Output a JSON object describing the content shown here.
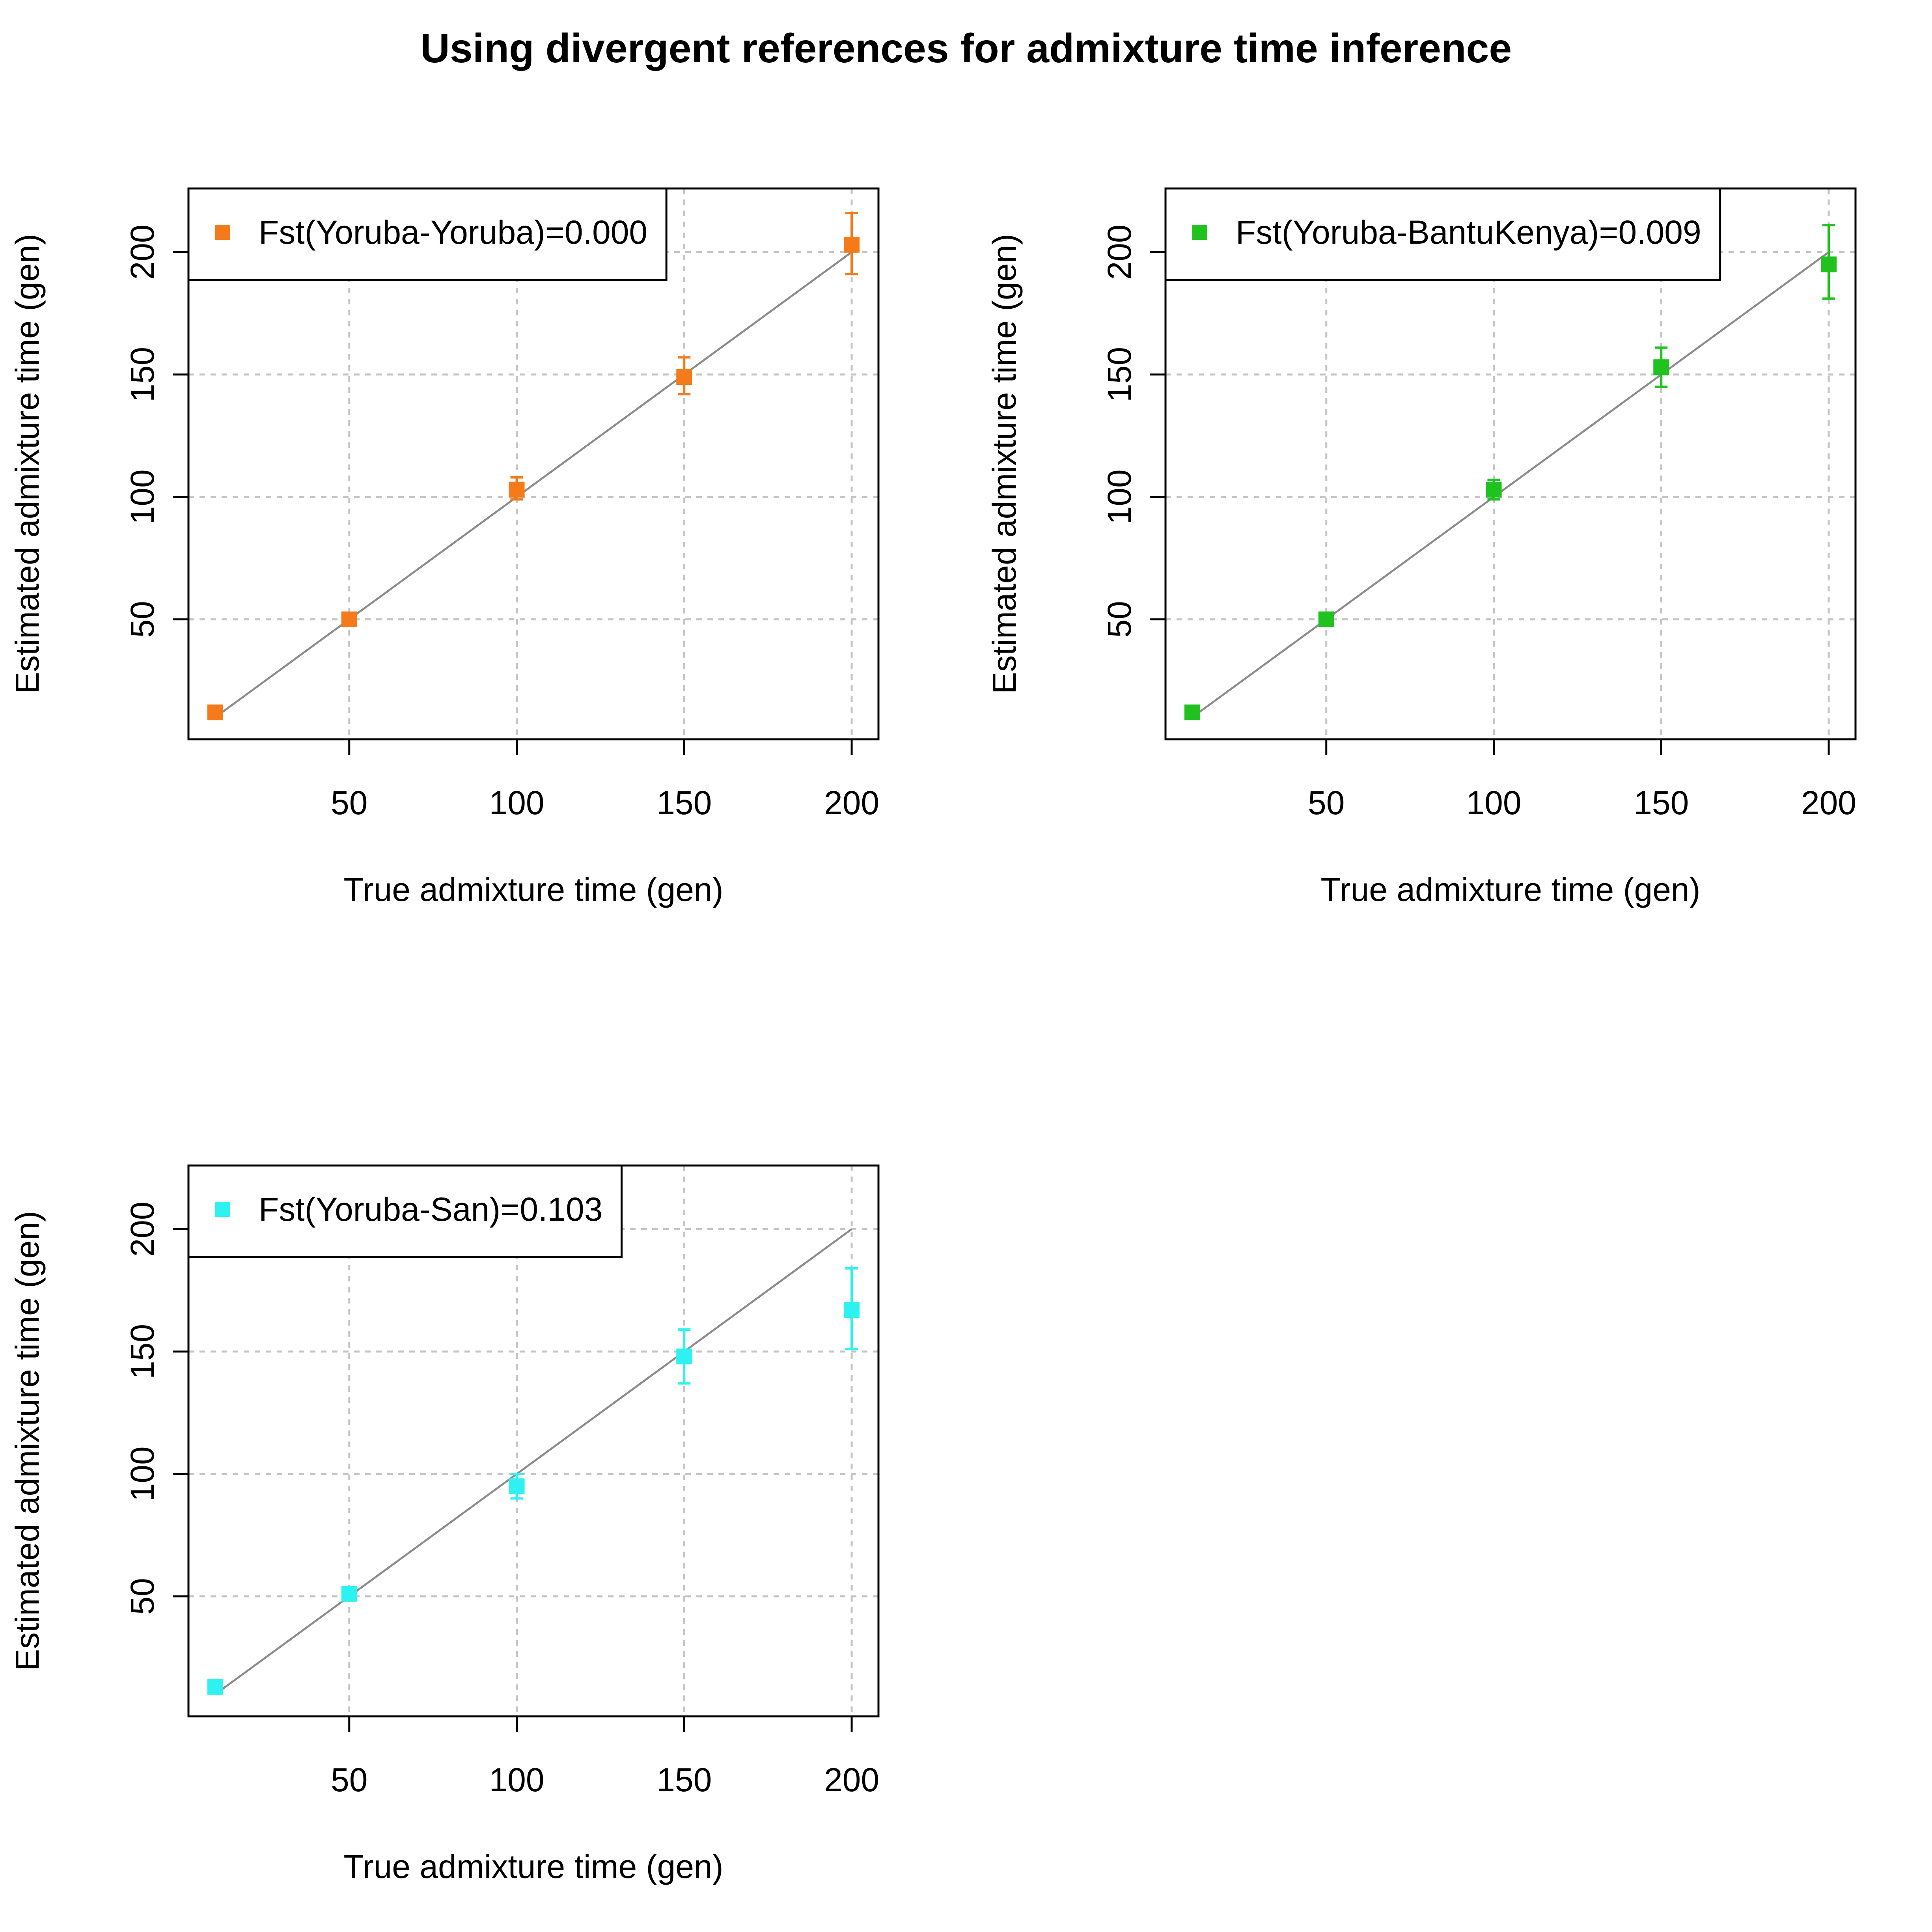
{
  "figure": {
    "title": "Using divergent references for admixture time inference"
  },
  "chart_data": [
    {
      "type": "scatter",
      "xlabel": "True admixture time (gen)",
      "ylabel": "Estimated admixture time (gen)",
      "xlim": [
        2,
        208
      ],
      "ylim": [
        1,
        226
      ],
      "xticks": [
        50,
        100,
        150,
        200
      ],
      "yticks": [
        50,
        100,
        150,
        200
      ],
      "grid": true,
      "reference_line": "y = x",
      "legend_position": "top-left",
      "series": [
        {
          "name": "Fst(Yoruba-Yoruba)=0.000",
          "color": "#F57A1A",
          "x": [
            10,
            50,
            100,
            150,
            200
          ],
          "y": [
            12,
            50,
            103,
            149,
            203
          ],
          "err_low": [
            11,
            48,
            99,
            142,
            191
          ],
          "err_high": [
            13,
            52,
            108,
            157,
            216
          ]
        }
      ]
    },
    {
      "type": "scatter",
      "xlabel": "True admixture time (gen)",
      "ylabel": "Estimated admixture time (gen)",
      "xlim": [
        2,
        208
      ],
      "ylim": [
        1,
        226
      ],
      "xticks": [
        50,
        100,
        150,
        200
      ],
      "yticks": [
        50,
        100,
        150,
        200
      ],
      "grid": true,
      "reference_line": "y = x",
      "legend_position": "top-left",
      "series": [
        {
          "name": "Fst(Yoruba-BantuKenya)=0.009",
          "color": "#1FC21F",
          "x": [
            10,
            50,
            100,
            150,
            200
          ],
          "y": [
            12,
            50,
            103,
            153,
            195
          ],
          "err_low": [
            11,
            48,
            99,
            145,
            181
          ],
          "err_high": [
            13,
            52,
            107,
            161,
            211
          ]
        }
      ]
    },
    {
      "type": "scatter",
      "xlabel": "True admixture time (gen)",
      "ylabel": "Estimated admixture time (gen)",
      "xlim": [
        2,
        208
      ],
      "ylim": [
        1,
        226
      ],
      "xticks": [
        50,
        100,
        150,
        200
      ],
      "yticks": [
        50,
        100,
        150,
        200
      ],
      "grid": true,
      "reference_line": "y = x",
      "legend_position": "top-left",
      "series": [
        {
          "name": "Fst(Yoruba-San)=0.103",
          "color": "#2EF2F2",
          "x": [
            10,
            50,
            100,
            150,
            200
          ],
          "y": [
            13,
            51,
            95,
            148,
            167
          ],
          "err_low": [
            12,
            49,
            90,
            137,
            151
          ],
          "err_high": [
            14,
            53,
            100,
            159,
            184
          ]
        }
      ]
    }
  ]
}
